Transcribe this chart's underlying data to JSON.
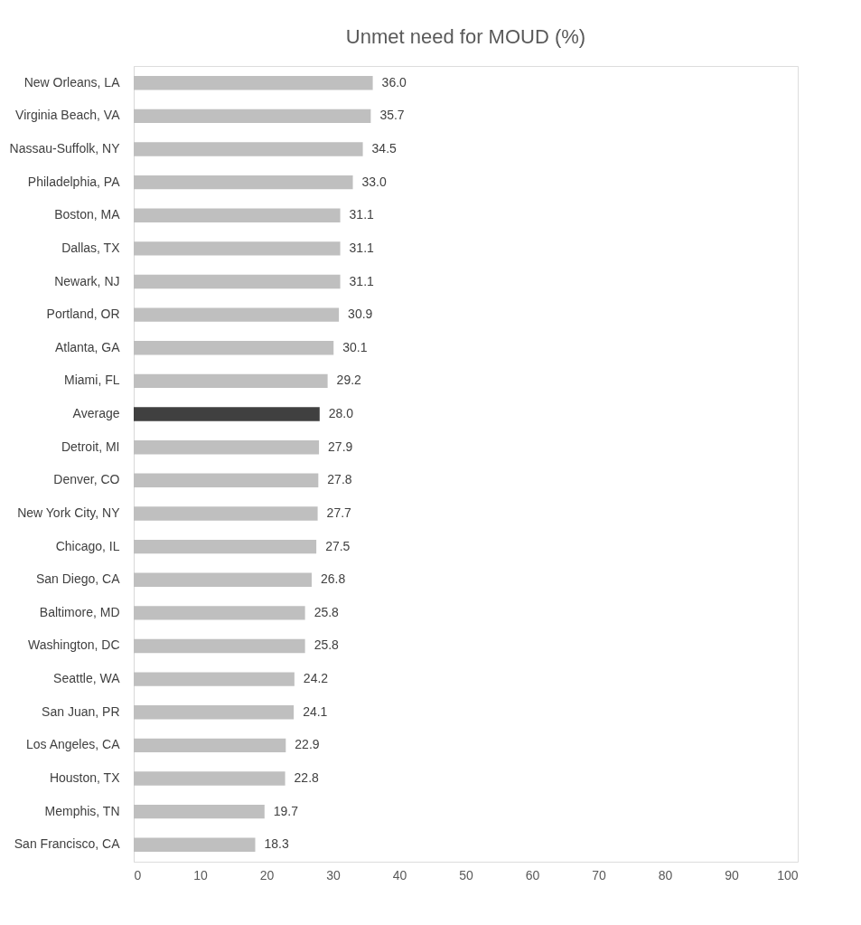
{
  "chart_data": {
    "type": "bar",
    "orientation": "horizontal",
    "title": "Unmet need for MOUD (%)",
    "categories": [
      "New Orleans, LA",
      "Virginia Beach, VA",
      "Nassau-Suffolk, NY",
      "Philadelphia, PA",
      "Boston, MA",
      "Dallas, TX",
      "Newark, NJ",
      "Portland, OR",
      "Atlanta, GA",
      "Miami, FL",
      "Average",
      "Detroit, MI",
      "Denver, CO",
      "New York City, NY",
      "Chicago, IL",
      "San Diego, CA",
      "Baltimore, MD",
      "Washington, DC",
      "Seattle, WA",
      "San Juan, PR",
      "Los Angeles, CA",
      "Houston, TX",
      "Memphis, TN",
      "San Francisco, CA"
    ],
    "values": [
      36.0,
      35.7,
      34.5,
      33.0,
      31.1,
      31.1,
      31.1,
      30.9,
      30.1,
      29.2,
      28.0,
      27.9,
      27.8,
      27.7,
      27.5,
      26.8,
      25.8,
      25.8,
      24.2,
      24.1,
      22.9,
      22.8,
      19.7,
      18.3
    ],
    "colors": [
      "#bfbfbf",
      "#bfbfbf",
      "#bfbfbf",
      "#bfbfbf",
      "#bfbfbf",
      "#bfbfbf",
      "#bfbfbf",
      "#bfbfbf",
      "#bfbfbf",
      "#bfbfbf",
      "#404040",
      "#bfbfbf",
      "#bfbfbf",
      "#bfbfbf",
      "#bfbfbf",
      "#bfbfbf",
      "#bfbfbf",
      "#bfbfbf",
      "#bfbfbf",
      "#bfbfbf",
      "#bfbfbf",
      "#bfbfbf",
      "#bfbfbf",
      "#bfbfbf"
    ],
    "xlim": [
      0,
      100
    ],
    "xticks": [
      0,
      10,
      20,
      30,
      40,
      50,
      60,
      70,
      80,
      90,
      100
    ],
    "value_labels": [
      "36.0",
      "35.7",
      "34.5",
      "33.0",
      "31.1",
      "31.1",
      "31.1",
      "30.9",
      "30.1",
      "29.2",
      "28.0",
      "27.9",
      "27.8",
      "27.7",
      "27.5",
      "26.8",
      "25.8",
      "25.8",
      "24.2",
      "24.1",
      "22.9",
      "22.8",
      "19.7",
      "18.3"
    ],
    "grid": false
  }
}
